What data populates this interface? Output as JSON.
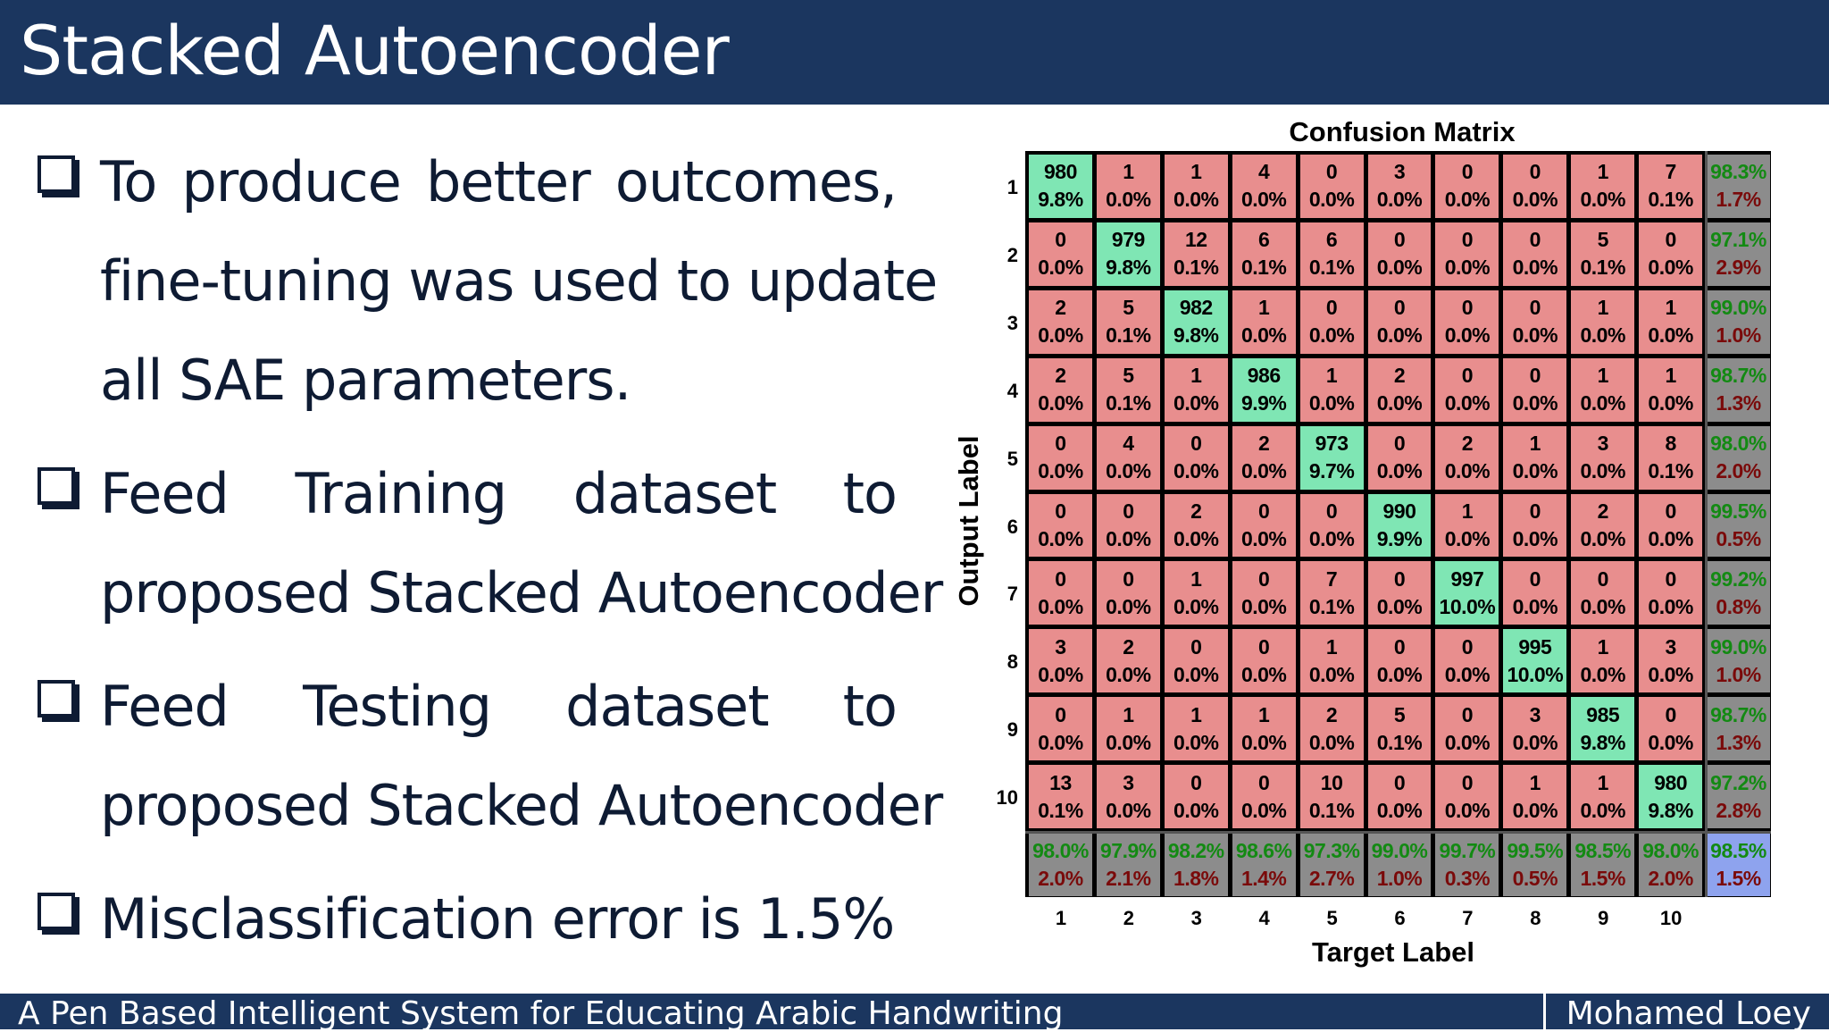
{
  "header": {
    "title": "Stacked Autoencoder"
  },
  "bullets": [
    {
      "lines": [
        "To  produce  better  outcomes,",
        "fine-tuning  was used to update",
        "all SAE parameters."
      ]
    },
    {
      "lines": [
        "Feed   Training   dataset   to",
        "proposed Stacked Autoencoder"
      ]
    },
    {
      "lines": [
        "Feed   Testing   dataset   to",
        "proposed Stacked Autoencoder"
      ]
    },
    {
      "lines": [
        "Misclassification error is 1.5%"
      ]
    }
  ],
  "footer": {
    "left": "A Pen Based Intelligent System for Educating Arabic Handwriting",
    "right": "Mohamed Loey"
  },
  "chart_data": {
    "type": "heatmap",
    "title": "Confusion Matrix",
    "xlabel": "Target Label",
    "ylabel": "Output Label",
    "row_labels": [
      "1",
      "2",
      "3",
      "4",
      "5",
      "6",
      "7",
      "8",
      "9",
      "10"
    ],
    "col_labels": [
      "1",
      "2",
      "3",
      "4",
      "5",
      "6",
      "7",
      "8",
      "9",
      "10"
    ],
    "counts": [
      [
        980,
        1,
        1,
        4,
        0,
        3,
        0,
        0,
        1,
        7
      ],
      [
        0,
        979,
        12,
        6,
        6,
        0,
        0,
        0,
        5,
        0
      ],
      [
        2,
        5,
        982,
        1,
        0,
        0,
        0,
        0,
        1,
        1
      ],
      [
        2,
        5,
        1,
        986,
        1,
        2,
        0,
        0,
        1,
        1
      ],
      [
        0,
        4,
        0,
        2,
        973,
        0,
        2,
        1,
        3,
        8
      ],
      [
        0,
        0,
        2,
        0,
        0,
        990,
        1,
        0,
        2,
        0
      ],
      [
        0,
        0,
        1,
        0,
        7,
        0,
        997,
        0,
        0,
        0
      ],
      [
        3,
        2,
        0,
        0,
        1,
        0,
        0,
        995,
        1,
        3
      ],
      [
        0,
        1,
        1,
        1,
        2,
        5,
        0,
        3,
        985,
        0
      ],
      [
        13,
        3,
        0,
        0,
        10,
        0,
        0,
        1,
        1,
        980
      ]
    ],
    "percents": [
      [
        "9.8%",
        "0.0%",
        "0.0%",
        "0.0%",
        "0.0%",
        "0.0%",
        "0.0%",
        "0.0%",
        "0.0%",
        "0.1%"
      ],
      [
        "0.0%",
        "9.8%",
        "0.1%",
        "0.1%",
        "0.1%",
        "0.0%",
        "0.0%",
        "0.0%",
        "0.1%",
        "0.0%"
      ],
      [
        "0.0%",
        "0.1%",
        "9.8%",
        "0.0%",
        "0.0%",
        "0.0%",
        "0.0%",
        "0.0%",
        "0.0%",
        "0.0%"
      ],
      [
        "0.0%",
        "0.1%",
        "0.0%",
        "9.9%",
        "0.0%",
        "0.0%",
        "0.0%",
        "0.0%",
        "0.0%",
        "0.0%"
      ],
      [
        "0.0%",
        "0.0%",
        "0.0%",
        "0.0%",
        "9.7%",
        "0.0%",
        "0.0%",
        "0.0%",
        "0.0%",
        "0.1%"
      ],
      [
        "0.0%",
        "0.0%",
        "0.0%",
        "0.0%",
        "0.0%",
        "9.9%",
        "0.0%",
        "0.0%",
        "0.0%",
        "0.0%"
      ],
      [
        "0.0%",
        "0.0%",
        "0.0%",
        "0.0%",
        "0.1%",
        "0.0%",
        "10.0%",
        "0.0%",
        "0.0%",
        "0.0%"
      ],
      [
        "0.0%",
        "0.0%",
        "0.0%",
        "0.0%",
        "0.0%",
        "0.0%",
        "0.0%",
        "10.0%",
        "0.0%",
        "0.0%"
      ],
      [
        "0.0%",
        "0.0%",
        "0.0%",
        "0.0%",
        "0.0%",
        "0.1%",
        "0.0%",
        "0.0%",
        "9.8%",
        "0.0%"
      ],
      [
        "0.1%",
        "0.0%",
        "0.0%",
        "0.0%",
        "0.1%",
        "0.0%",
        "0.0%",
        "0.0%",
        "0.0%",
        "9.8%"
      ]
    ],
    "row_summary": [
      [
        "98.3%",
        "1.7%"
      ],
      [
        "97.1%",
        "2.9%"
      ],
      [
        "99.0%",
        "1.0%"
      ],
      [
        "98.7%",
        "1.3%"
      ],
      [
        "98.0%",
        "2.0%"
      ],
      [
        "99.5%",
        "0.5%"
      ],
      [
        "99.2%",
        "0.8%"
      ],
      [
        "99.0%",
        "1.0%"
      ],
      [
        "98.7%",
        "1.3%"
      ],
      [
        "97.2%",
        "2.8%"
      ]
    ],
    "col_summary": [
      [
        "98.0%",
        "2.0%"
      ],
      [
        "97.9%",
        "2.1%"
      ],
      [
        "98.2%",
        "1.8%"
      ],
      [
        "98.6%",
        "1.4%"
      ],
      [
        "97.3%",
        "2.7%"
      ],
      [
        "99.0%",
        "1.0%"
      ],
      [
        "99.7%",
        "0.3%"
      ],
      [
        "99.5%",
        "0.5%"
      ],
      [
        "98.5%",
        "1.5%"
      ],
      [
        "98.0%",
        "2.0%"
      ]
    ],
    "overall": [
      "98.5%",
      "1.5%"
    ],
    "colors": {
      "correct": "#7fe6b4",
      "incorrect": "#e88e8e",
      "summary": "#8c8c8c",
      "overall": "#8ea3ee",
      "accuracy_text": "#138a13",
      "error_text": "#7a0a0a"
    }
  }
}
